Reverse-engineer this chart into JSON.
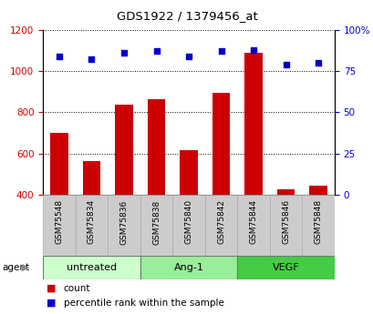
{
  "title": "GDS1922 / 1379456_at",
  "categories": [
    "GSM75548",
    "GSM75834",
    "GSM75836",
    "GSM75838",
    "GSM75840",
    "GSM75842",
    "GSM75844",
    "GSM75846",
    "GSM75848"
  ],
  "bar_values": [
    700,
    562,
    835,
    865,
    615,
    895,
    1090,
    425,
    445
  ],
  "dot_values": [
    84,
    82,
    86,
    87,
    84,
    87,
    88,
    79,
    80
  ],
  "bar_color": "#cc0000",
  "dot_color": "#0000cc",
  "ylim_left": [
    400,
    1200
  ],
  "ylim_right": [
    0,
    100
  ],
  "yticks_left": [
    400,
    600,
    800,
    1000,
    1200
  ],
  "ytick_labels_left": [
    "400",
    "600",
    "800",
    "1000",
    "1200"
  ],
  "yticks_right": [
    0,
    25,
    50,
    75,
    100
  ],
  "ytick_labels_right": [
    "0",
    "25",
    "50",
    "75",
    "100%"
  ],
  "groups": [
    {
      "label": "untreated",
      "indices": [
        0,
        1,
        2
      ],
      "color": "#ccffcc"
    },
    {
      "label": "Ang-1",
      "indices": [
        3,
        4,
        5
      ],
      "color": "#99ee99"
    },
    {
      "label": "VEGF",
      "indices": [
        6,
        7,
        8
      ],
      "color": "#44cc44"
    }
  ],
  "legend_count_color": "#cc0000",
  "legend_dot_color": "#0000cc",
  "legend_count_label": "count",
  "legend_dot_label": "percentile rank within the sample",
  "tick_area_color": "#cccccc",
  "bar_bottom": 400
}
